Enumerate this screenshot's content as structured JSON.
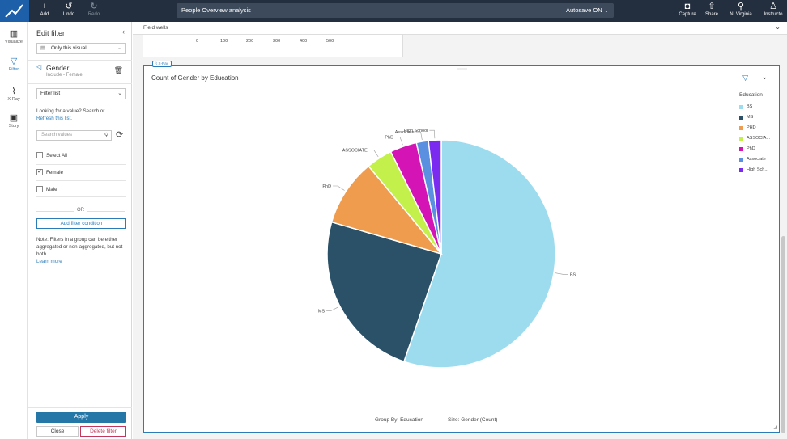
{
  "topbar": {
    "add_label": "Add",
    "undo_label": "Undo",
    "redo_label": "Redo",
    "analysis_title": "People Overview analysis",
    "autosave_label": "Autosave ON",
    "capture_label": "Capture",
    "share_label": "Share",
    "region_label": "N. Virginia",
    "user_label": "Instructo"
  },
  "rail": {
    "items": [
      {
        "label": "Visualize",
        "icon": "bar-chart-icon"
      },
      {
        "label": "Filter",
        "icon": "filter-icon"
      },
      {
        "label": "X-Ray",
        "icon": "xray-icon"
      },
      {
        "label": "Story",
        "icon": "story-icon"
      }
    ]
  },
  "filter_panel": {
    "title": "Edit filter",
    "scope_value": "Only this visual",
    "field_name": "Gender",
    "field_summary": "Include - Female",
    "filter_type_value": "Filter list",
    "help_text": "Looking for a value? Search or",
    "refresh_link": "Refresh this list.",
    "search_placeholder": "Search values",
    "select_all_label": "Select All",
    "values": [
      {
        "label": "Female",
        "checked": true
      },
      {
        "label": "Male",
        "checked": false
      }
    ],
    "or_label": "OR",
    "add_condition_label": "Add filter condition",
    "note_text": "Note: Filters in a group can be either aggregated or non-aggregated, but not both.",
    "learn_more_label": "Learn more",
    "apply_label": "Apply",
    "close_label": "Close",
    "delete_label": "Delete filter"
  },
  "field_wells": {
    "label": "Field wells"
  },
  "prev_visual": {
    "ticks": [
      "0",
      "100",
      "200",
      "300",
      "400",
      "500"
    ]
  },
  "xray_tag": "X-Ray",
  "visual": {
    "title": "Count of Gender by Education",
    "group_by_label": "Group By: Education",
    "size_label": "Size: Gender (Count)"
  },
  "chart_data": {
    "type": "pie",
    "title": "Count of Gender by Education",
    "legend_title": "Education",
    "legend_position": "right",
    "slices": [
      {
        "label": "BS",
        "legend": "BS",
        "value": 55.3,
        "color": "#9ddcee"
      },
      {
        "label": "MS",
        "legend": "MS",
        "value": 24.2,
        "color": "#2b5168"
      },
      {
        "label": "PhD",
        "legend": "PHD",
        "value": 9.5,
        "color": "#ef9c4f"
      },
      {
        "label": "ASSOCIATE",
        "legend": "ASSOCIA...",
        "value": 3.7,
        "color": "#c3f04a"
      },
      {
        "label": "PhD",
        "legend": "PhD",
        "value": 3.8,
        "color": "#d414b4"
      },
      {
        "label": "Associate",
        "legend": "Associate",
        "value": 1.7,
        "color": "#5b8fe0"
      },
      {
        "label": "High School",
        "legend": "High Sch...",
        "value": 1.8,
        "color": "#7b2bf0"
      }
    ]
  }
}
